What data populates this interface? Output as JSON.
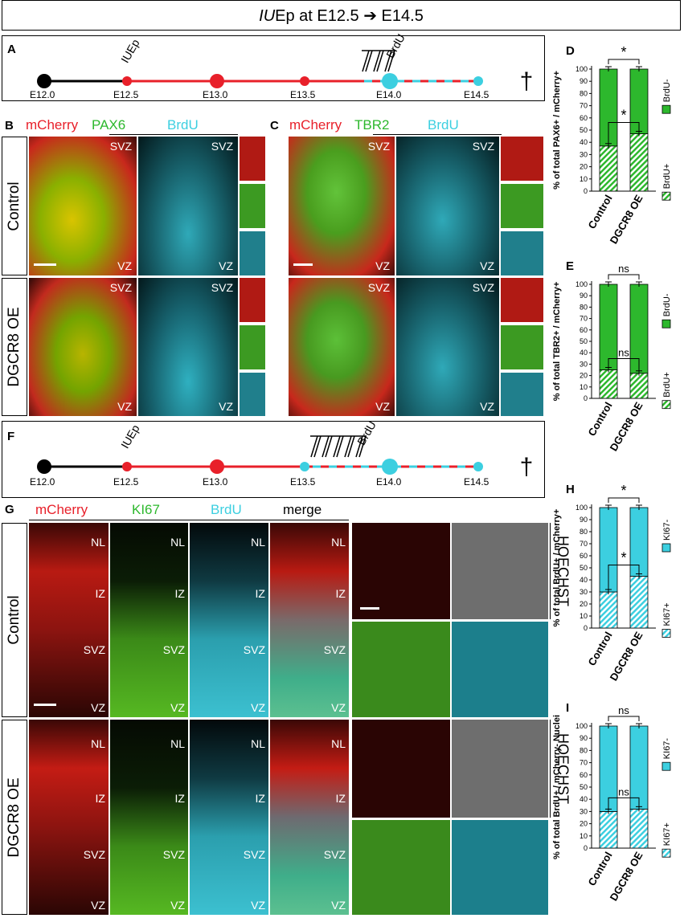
{
  "title_prefix": "IU",
  "title_rest": "Ep at E12.5 ➔ E14.5",
  "panels": {
    "A": "A",
    "B": "B",
    "C": "C",
    "D": "D",
    "E": "E",
    "F": "F",
    "G": "G",
    "H": "H",
    "I": "I"
  },
  "timeline": {
    "ticks": [
      "E12.0",
      "E12.5",
      "E13.0",
      "E13.5",
      "E14.0",
      "E14.5"
    ],
    "iuep": "IUEp",
    "brdu": "BrdU",
    "dagger": "†"
  },
  "channels": {
    "mcherry": "mCherry",
    "pax6": "PAX6",
    "tbr2": "TBR2",
    "brdu": "BrdU",
    "ki67": "KI67",
    "merge": "merge",
    "hoechst": "HOECHST"
  },
  "rows": {
    "control": "Control",
    "dgcr8": "DGCR8  OE",
    "dgcr8_g": "DGCR8 OE"
  },
  "zones": {
    "svz": "SVZ",
    "vz": "VZ",
    "nl": "NL",
    "iz": "IZ"
  },
  "colors": {
    "red": "#e8202a",
    "green": "#2db82d",
    "cyan": "#3ccfe0",
    "black": "#000000"
  },
  "chart_data": [
    {
      "panel": "D",
      "type": "bar",
      "stacked": true,
      "categories": [
        "Control",
        "DGCR8 OE"
      ],
      "series": [
        {
          "name": "BrdU+",
          "values": [
            37,
            47
          ]
        },
        {
          "name": "BrdU-",
          "values": [
            63,
            53
          ]
        }
      ],
      "ylabel": "% of total PAX6+ / mCherry+",
      "ylim": [
        0,
        100
      ],
      "yticks": [
        0,
        10,
        20,
        30,
        40,
        50,
        60,
        70,
        80,
        90,
        100
      ],
      "annotations": [
        "*",
        "*"
      ]
    },
    {
      "panel": "E",
      "type": "bar",
      "stacked": true,
      "categories": [
        "Control",
        "DGCR8 OE"
      ],
      "series": [
        {
          "name": "BrdU+",
          "values": [
            25,
            22
          ]
        },
        {
          "name": "BrdU-",
          "values": [
            75,
            78
          ]
        }
      ],
      "ylabel": "% of total TBR2+ / mCherry+",
      "ylim": [
        0,
        100
      ],
      "yticks": [
        0,
        10,
        20,
        30,
        40,
        50,
        60,
        70,
        80,
        90,
        100
      ],
      "annotations": [
        "ns",
        "ns"
      ]
    },
    {
      "panel": "H",
      "type": "bar",
      "stacked": true,
      "categories": [
        "Control",
        "DGCR8 OE"
      ],
      "series": [
        {
          "name": "KI67+",
          "values": [
            30,
            43
          ]
        },
        {
          "name": "KI67-",
          "values": [
            70,
            57
          ]
        }
      ],
      "ylabel": "% of total BrdU+ / mCherry+",
      "ylim": [
        0,
        100
      ],
      "yticks": [
        0,
        10,
        20,
        30,
        40,
        50,
        60,
        70,
        80,
        90,
        100
      ],
      "annotations": [
        "*",
        "*"
      ]
    },
    {
      "panel": "I",
      "type": "bar",
      "stacked": true,
      "categories": [
        "Control",
        "DGCR8 OE"
      ],
      "series": [
        {
          "name": "KI67+",
          "values": [
            30,
            32
          ]
        },
        {
          "name": "KI67-",
          "values": [
            70,
            68
          ]
        }
      ],
      "ylabel": "% of total BrdU+ / mCherry- Nuclei",
      "ylim": [
        0,
        100
      ],
      "yticks": [
        0,
        10,
        20,
        30,
        40,
        50,
        60,
        70,
        80,
        90,
        100
      ],
      "annotations": [
        "ns",
        "ns"
      ]
    }
  ]
}
